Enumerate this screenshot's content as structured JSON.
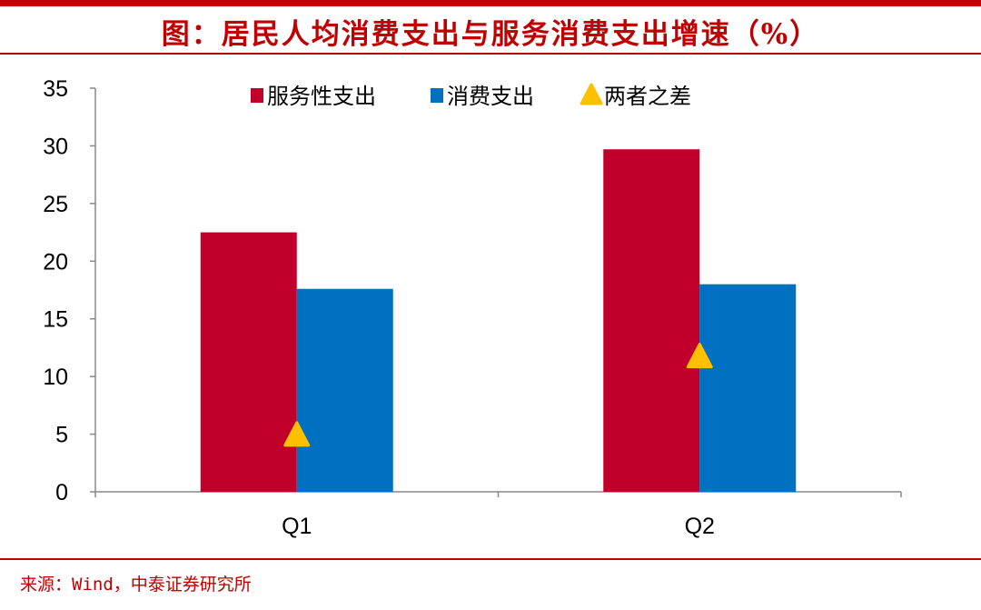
{
  "title": "图：居民人均消费支出与服务消费支出增速（%）",
  "source": "来源：Wind，中泰证券研究所",
  "chart_data": {
    "type": "bar",
    "categories": [
      "Q1",
      "Q2"
    ],
    "series": [
      {
        "name": "服务性支出",
        "values": [
          22.5,
          29.7
        ],
        "color": "#c0002a",
        "mark": "bar"
      },
      {
        "name": "消费支出",
        "values": [
          17.6,
          18.0
        ],
        "color": "#0070c0",
        "mark": "bar"
      },
      {
        "name": "两者之差",
        "values": [
          4.9,
          11.7
        ],
        "color": "#ffc000",
        "mark": "triangle"
      }
    ],
    "ylim": [
      0,
      35
    ],
    "yticks": [
      0,
      5,
      10,
      15,
      20,
      25,
      30,
      35
    ],
    "grid": false,
    "legend": "top"
  }
}
